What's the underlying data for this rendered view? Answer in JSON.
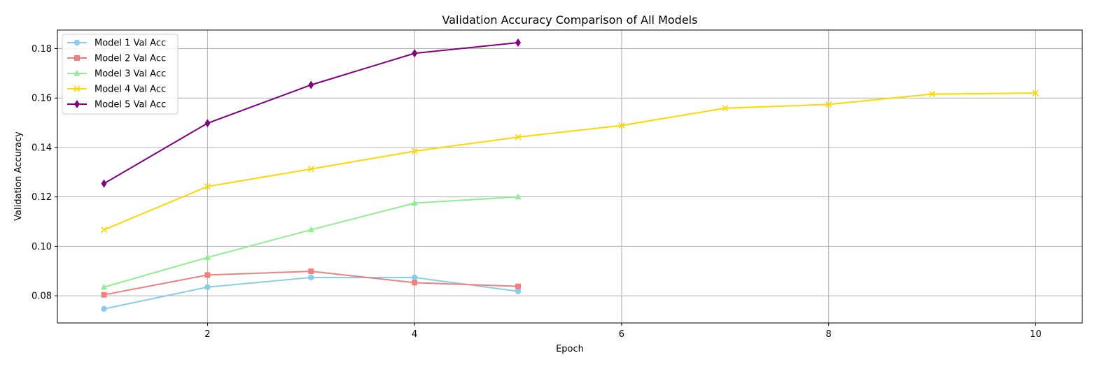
{
  "chart_data": {
    "type": "line",
    "title": "Validation Accuracy Comparison of All Models",
    "xlabel": "Epoch",
    "ylabel": "Validation Accuracy",
    "xlim": [
      0.55,
      10.45
    ],
    "ylim": [
      0.069,
      0.1875
    ],
    "xticks": [
      2,
      4,
      6,
      8,
      10
    ],
    "xtick_labels": [
      "2",
      "4",
      "6",
      "8",
      "10"
    ],
    "yticks": [
      0.08,
      0.1,
      0.12,
      0.14,
      0.16,
      0.18
    ],
    "ytick_labels": [
      "0.08",
      "0.10",
      "0.12",
      "0.14",
      "0.16",
      "0.18"
    ],
    "grid": true,
    "legend_position": "top-left",
    "series": [
      {
        "name": "Model 1 Val Acc",
        "color": "#87ceeb",
        "marker": "circle",
        "x": [
          1,
          2,
          3,
          4,
          5
        ],
        "y": [
          0.0747,
          0.0835,
          0.0874,
          0.0874,
          0.0818
        ]
      },
      {
        "name": "Model 2 Val Acc",
        "color": "#f08080",
        "marker": "square",
        "x": [
          1,
          2,
          3,
          4,
          5
        ],
        "y": [
          0.0804,
          0.0884,
          0.0899,
          0.0853,
          0.0838
        ]
      },
      {
        "name": "Model 3 Val Acc",
        "color": "#90ee90",
        "marker": "triangle",
        "x": [
          1,
          2,
          3,
          4,
          5
        ],
        "y": [
          0.0835,
          0.0955,
          0.1067,
          0.1175,
          0.12
        ]
      },
      {
        "name": "Model 4 Val Acc",
        "color": "#ffd700",
        "marker": "x",
        "x": [
          1,
          2,
          3,
          4,
          5,
          6,
          7,
          8,
          9,
          10
        ],
        "y": [
          0.1067,
          0.1242,
          0.1313,
          0.1385,
          0.1442,
          0.1489,
          0.1559,
          0.1574,
          0.1616,
          0.162
        ]
      },
      {
        "name": "Model 5 Val Acc",
        "color": "#800080",
        "marker": "diamond",
        "x": [
          1,
          2,
          3,
          4,
          5
        ],
        "y": [
          0.1254,
          0.1498,
          0.1653,
          0.1781,
          0.1824
        ]
      }
    ]
  }
}
